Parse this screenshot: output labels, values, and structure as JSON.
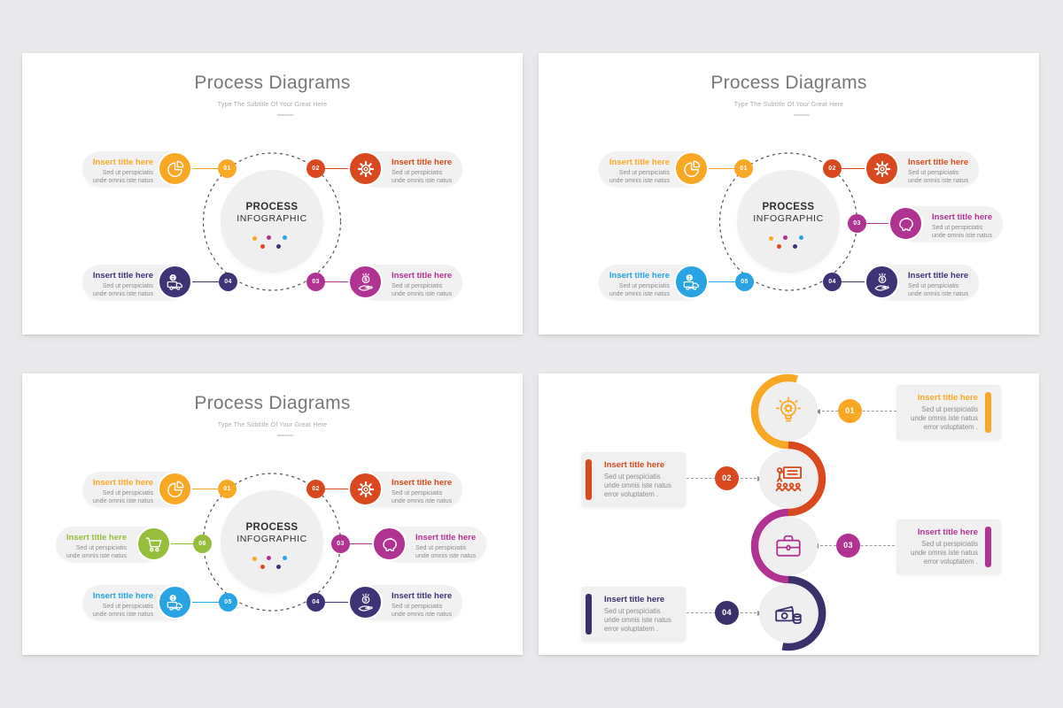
{
  "page": {
    "background": "#E9E9EB"
  },
  "slides": [
    {
      "title": "Process Diagrams",
      "subtitle": "Type The Subtitle Of Your Great Here",
      "center": {
        "title": "PROCESS",
        "subtitle": "INFOGRAPHIC"
      },
      "center_dots": [
        "#F9A826",
        "#B03391",
        "#29A3E3",
        "#D9481E",
        "#3E3374"
      ],
      "items": [
        {
          "number": "01",
          "title": "Insert title here",
          "body": "Sed ut perspiciatis unde omnis iste natus",
          "color": "#F9A826",
          "icon": "pie-chart"
        },
        {
          "number": "02",
          "title": "Insert title here",
          "body": "Sed ut perspiciatis unde omnis iste natus",
          "color": "#D9481E",
          "icon": "gear"
        },
        {
          "number": "04",
          "title": "Insert title here",
          "body": "Sed ut perspiciatis unde omnis iste natus",
          "color": "#3E3374",
          "icon": "delivery-truck"
        },
        {
          "number": "03",
          "title": "Insert title here",
          "body": "Sed ut perspiciatis unde omnis iste natus",
          "color": "#B03391",
          "icon": "hand-dollar"
        }
      ]
    },
    {
      "title": "Process Diagrams",
      "subtitle": "Type The Subtitle Of Your Great Here",
      "center": {
        "title": "PROCESS",
        "subtitle": "INFOGRAPHIC"
      },
      "center_dots": [
        "#F9A826",
        "#B03391",
        "#29A3E3",
        "#D9481E",
        "#3E3374"
      ],
      "items": [
        {
          "number": "01",
          "title": "Insert title here",
          "body": "Sed ut perspiciatis unde omnis iste natus",
          "color": "#F9A826",
          "icon": "pie-chart"
        },
        {
          "number": "02",
          "title": "Insert title here",
          "body": "Sed ut perspiciatis unde omnis iste natus",
          "color": "#D9481E",
          "icon": "gear"
        },
        {
          "number": "03",
          "title": "Insert title here",
          "body": "Sed ut perspiciatis unde omnis iste natus",
          "color": "#B03391",
          "icon": "piggy-bank"
        },
        {
          "number": "05",
          "title": "Insert title here",
          "body": "Sed ut perspiciatis unde omnis iste natus",
          "color": "#29A3E3",
          "icon": "delivery-truck"
        },
        {
          "number": "04",
          "title": "Insert title here",
          "body": "Sed ut perspiciatis unde omnis iste natus",
          "color": "#3E3374",
          "icon": "hand-dollar"
        }
      ]
    },
    {
      "title": "Process Diagrams",
      "subtitle": "Type The Subtitle Of Your Great Here",
      "center": {
        "title": "PROCESS",
        "subtitle": "INFOGRAPHIC"
      },
      "center_dots": [
        "#F9A826",
        "#B03391",
        "#29A3E3",
        "#D9481E",
        "#3E3374"
      ],
      "items": [
        {
          "number": "01",
          "title": "Insert title here",
          "body": "Sed ut perspiciatis unde omnis iste natus",
          "color": "#F9A826",
          "icon": "pie-chart"
        },
        {
          "number": "02",
          "title": "Insert title here",
          "body": "Sed ut perspiciatis unde omnis iste natus",
          "color": "#D9481E",
          "icon": "gear"
        },
        {
          "number": "06",
          "title": "Insert title here",
          "body": "Sed ut perspiciatis unde omnis iste natus",
          "color": "#97BD3C",
          "icon": "cart"
        },
        {
          "number": "03",
          "title": "Insert title here",
          "body": "Sed ut perspiciatis unde omnis iste natus",
          "color": "#B03391",
          "icon": "piggy-bank"
        },
        {
          "number": "05",
          "title": "Insert title here",
          "body": "Sed ut perspiciatis unde omnis iste natus",
          "color": "#29A3E3",
          "icon": "delivery-truck"
        },
        {
          "number": "04",
          "title": "Insert title here",
          "body": "Sed ut perspiciatis unde omnis iste natus",
          "color": "#3E3374",
          "icon": "hand-dollar"
        }
      ]
    },
    {
      "items": [
        {
          "number": "01",
          "title": "Insert title here",
          "body": "Sed ut perspiciatis unde omnis iste natus error voluptatem .",
          "color": "#F9A826",
          "icon": "idea-bulb"
        },
        {
          "number": "02",
          "title": "Insert title here",
          "body": "Sed ut perspiciatis unde omnis iste natus error voluptatem .",
          "color": "#D9481E",
          "icon": "training"
        },
        {
          "number": "03",
          "title": "Insert title here",
          "body": "Sed ut perspiciatis unde omnis iste natus error voluptatem .",
          "color": "#B03391",
          "icon": "briefcase"
        },
        {
          "number": "04",
          "title": "Insert title here",
          "body": "Sed ut perspiciatis unde omnis iste natus error voluptatem .",
          "color": "#3B3069",
          "icon": "money"
        }
      ]
    }
  ]
}
